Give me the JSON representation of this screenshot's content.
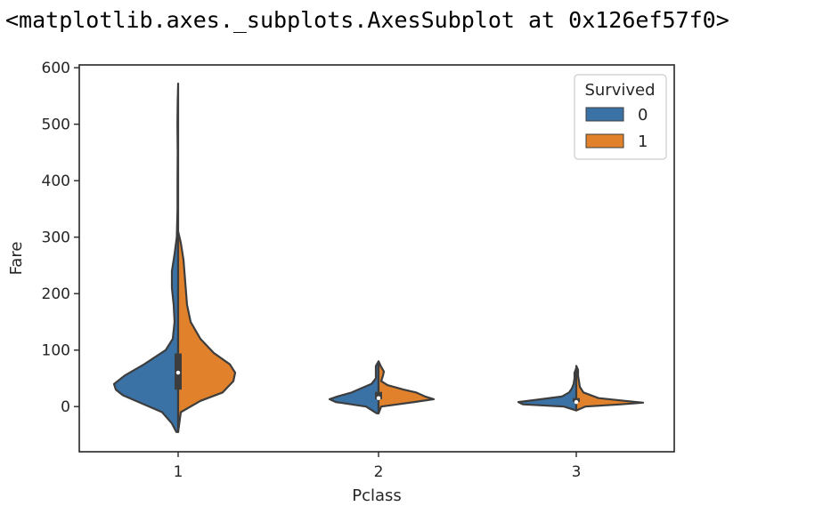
{
  "output_repr": "<matplotlib.axes._subplots.AxesSubplot at 0x126ef57f0>",
  "chart_data": {
    "type": "violin",
    "split": true,
    "categories": [
      "1",
      "2",
      "3"
    ],
    "xlabel": "Pclass",
    "ylabel": "Fare",
    "ylim": [
      -80,
      605
    ],
    "yticks": [
      0,
      100,
      200,
      300,
      400,
      500,
      600
    ],
    "grid": false,
    "legend": {
      "title": "Survived",
      "placement": "top-right",
      "entries": [
        {
          "label": "0",
          "color": "#3a72a6"
        },
        {
          "label": "1",
          "color": "#e1812b"
        }
      ]
    },
    "violins": [
      {
        "category": "1",
        "series": "0",
        "profile": [
          [
            -45,
            2
          ],
          [
            -30,
            7
          ],
          [
            -10,
            18
          ],
          [
            5,
            40
          ],
          [
            20,
            62
          ],
          [
            30,
            70
          ],
          [
            40,
            72
          ],
          [
            55,
            60
          ],
          [
            75,
            38
          ],
          [
            100,
            14
          ],
          [
            120,
            6
          ],
          [
            150,
            4
          ],
          [
            180,
            5
          ],
          [
            210,
            7
          ],
          [
            240,
            7
          ],
          [
            270,
            4
          ],
          [
            300,
            1.5
          ],
          [
            350,
            0.7
          ],
          [
            400,
            0.7
          ],
          [
            450,
            0.5
          ],
          [
            500,
            0.8
          ],
          [
            540,
            0.5
          ],
          [
            572,
            0
          ]
        ]
      },
      {
        "category": "1",
        "series": "1",
        "profile": [
          [
            -45,
            0
          ],
          [
            -10,
            3
          ],
          [
            10,
            25
          ],
          [
            25,
            50
          ],
          [
            45,
            62
          ],
          [
            60,
            64
          ],
          [
            75,
            58
          ],
          [
            95,
            40
          ],
          [
            120,
            25
          ],
          [
            150,
            14
          ],
          [
            180,
            10
          ],
          [
            220,
            8
          ],
          [
            260,
            6
          ],
          [
            290,
            3
          ],
          [
            310,
            0
          ]
        ]
      },
      {
        "category": "2",
        "series": "0",
        "profile": [
          [
            -12,
            2
          ],
          [
            0,
            14
          ],
          [
            8,
            48
          ],
          [
            13,
            55
          ],
          [
            18,
            46
          ],
          [
            25,
            30
          ],
          [
            32,
            20
          ],
          [
            40,
            8
          ],
          [
            50,
            3
          ],
          [
            60,
            3
          ],
          [
            72,
            3
          ],
          [
            80,
            0
          ]
        ]
      },
      {
        "category": "2",
        "series": "1",
        "profile": [
          [
            -12,
            0
          ],
          [
            0,
            3
          ],
          [
            8,
            40
          ],
          [
            13,
            62
          ],
          [
            18,
            52
          ],
          [
            25,
            42
          ],
          [
            30,
            28
          ],
          [
            38,
            10
          ],
          [
            45,
            3
          ],
          [
            55,
            5
          ],
          [
            62,
            6
          ],
          [
            70,
            3
          ],
          [
            80,
            0
          ]
        ]
      },
      {
        "category": "3",
        "series": "0",
        "profile": [
          [
            -7,
            0
          ],
          [
            0,
            14
          ],
          [
            4,
            60
          ],
          [
            8,
            65
          ],
          [
            12,
            45
          ],
          [
            18,
            16
          ],
          [
            25,
            8
          ],
          [
            32,
            5
          ],
          [
            40,
            3
          ],
          [
            50,
            2
          ],
          [
            60,
            2
          ],
          [
            68,
            0
          ]
        ]
      },
      {
        "category": "3",
        "series": "1",
        "profile": [
          [
            -7,
            0
          ],
          [
            0,
            10
          ],
          [
            4,
            50
          ],
          [
            7,
            75
          ],
          [
            10,
            55
          ],
          [
            15,
            25
          ],
          [
            25,
            8
          ],
          [
            35,
            4
          ],
          [
            45,
            3
          ],
          [
            55,
            2
          ],
          [
            65,
            2
          ],
          [
            72,
            0
          ]
        ]
      }
    ],
    "boxes": [
      {
        "category": "1",
        "q1": 30,
        "median": 60,
        "q3": 94,
        "whisker_low": -45,
        "whisker_high": 190
      },
      {
        "category": "2",
        "q1": 13,
        "median": 15,
        "q3": 26,
        "whisker_low": -10,
        "whisker_high": 55
      },
      {
        "category": "3",
        "q1": 8,
        "median": 8,
        "q3": 15,
        "whisker_low": -5,
        "whisker_high": 28
      }
    ]
  }
}
